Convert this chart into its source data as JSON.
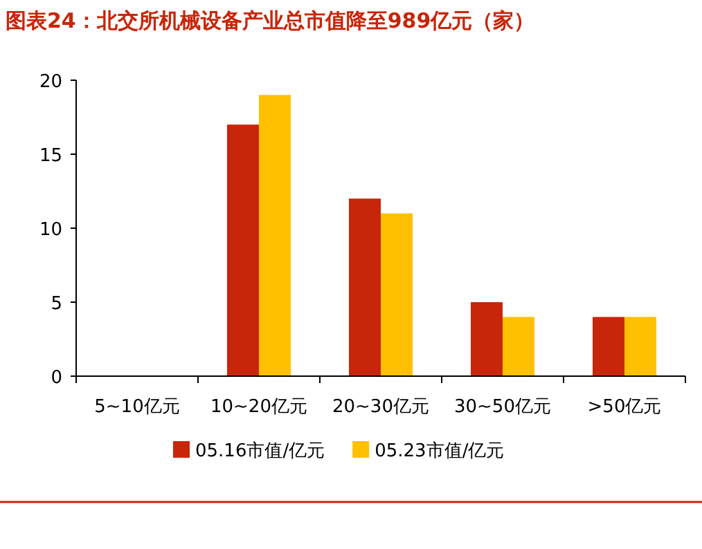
{
  "chart_data": {
    "type": "bar",
    "title": "图表24：北交所机械设备产业总市值降至989亿元（家）",
    "categories": [
      "5~10亿元",
      "10~20亿元",
      "20~30亿元",
      "30~50亿元",
      ">50亿元"
    ],
    "series": [
      {
        "name": "05.16市值/亿元",
        "color": "#c8260a",
        "values": [
          0,
          17,
          12,
          5,
          4
        ]
      },
      {
        "name": "05.23市值/亿元",
        "color": "#ffc000",
        "values": [
          0,
          19,
          11,
          4,
          4
        ]
      }
    ],
    "ylim": [
      0,
      20
    ],
    "yticks": [
      0,
      5,
      10,
      15,
      20
    ],
    "grid": false,
    "legend": "bottom"
  }
}
